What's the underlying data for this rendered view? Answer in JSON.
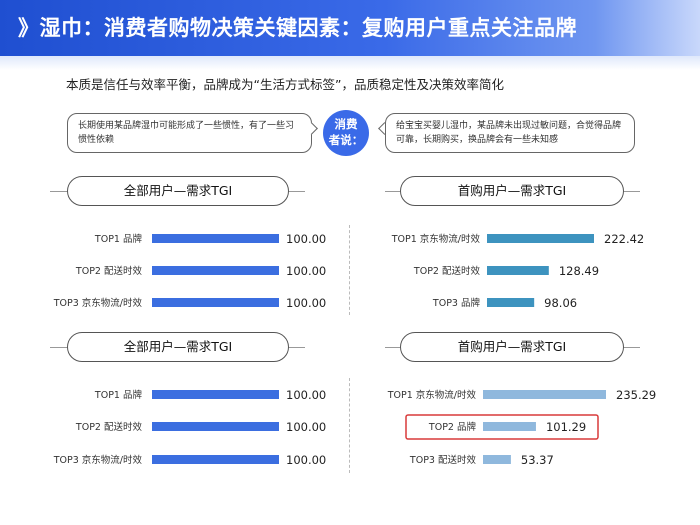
{
  "header": {
    "title": "》湿巾：消费者购物决策关键因素：复购用户重点关注品牌"
  },
  "subtitle": "本质是信任与效率平衡，品牌成为“生活方式标签”，品质稳定性及决策效率简化",
  "quotes": {
    "badge_line1": "消费",
    "badge_line2": "者说：",
    "left": "长期使用某品牌湿巾可能形成了一些惯性，有了一些习惯性依赖",
    "right": "给宝宝买婴儿湿巾，某品牌未出现过敏问题，合觉得品牌可靠，长期购买，换品牌会有一些未知感"
  },
  "colors": {
    "blue_bar": "#3b6ee0",
    "teal_bar": "#3d93bf",
    "light_bar": "#8fb8dd",
    "highlight": "#d83a3a"
  },
  "chart_data": [
    {
      "type": "bar",
      "orientation": "horizontal",
      "title": "全部用户—需求TGI",
      "categories": [
        "TOP1 品牌",
        "TOP2 配送时效",
        "TOP3 京东物流/时效"
      ],
      "values": [
        100.0,
        100.0,
        100.0
      ],
      "labels": [
        "100.00",
        "100.00",
        "100.00"
      ],
      "color": "#3b6ee0"
    },
    {
      "type": "bar",
      "orientation": "horizontal",
      "title": "首购用户—需求TGI",
      "categories": [
        "TOP1 京东物流/时效",
        "TOP2 配送时效",
        "TOP3 品牌"
      ],
      "values": [
        222.42,
        128.49,
        98.06
      ],
      "labels": [
        "222.42",
        "128.49",
        "98.06"
      ],
      "color": "#3d93bf"
    },
    {
      "type": "bar",
      "orientation": "horizontal",
      "title": "全部用户—需求TGI",
      "categories": [
        "TOP1 品牌",
        "TOP2 配送时效",
        "TOP3 京东物流/时效"
      ],
      "values": [
        100.0,
        100.0,
        100.0
      ],
      "labels": [
        "100.00",
        "100.00",
        "100.00"
      ],
      "color": "#3b6ee0"
    },
    {
      "type": "bar",
      "orientation": "horizontal",
      "title": "首购用户—需求TGI",
      "categories": [
        "TOP1 京东物流/时效",
        "TOP2 品牌",
        "TOP3 配送时效"
      ],
      "values": [
        235.29,
        101.29,
        53.37
      ],
      "labels": [
        "235.29",
        "101.29",
        "53.37"
      ],
      "color": "#8fb8dd",
      "highlight_index": 1
    }
  ]
}
